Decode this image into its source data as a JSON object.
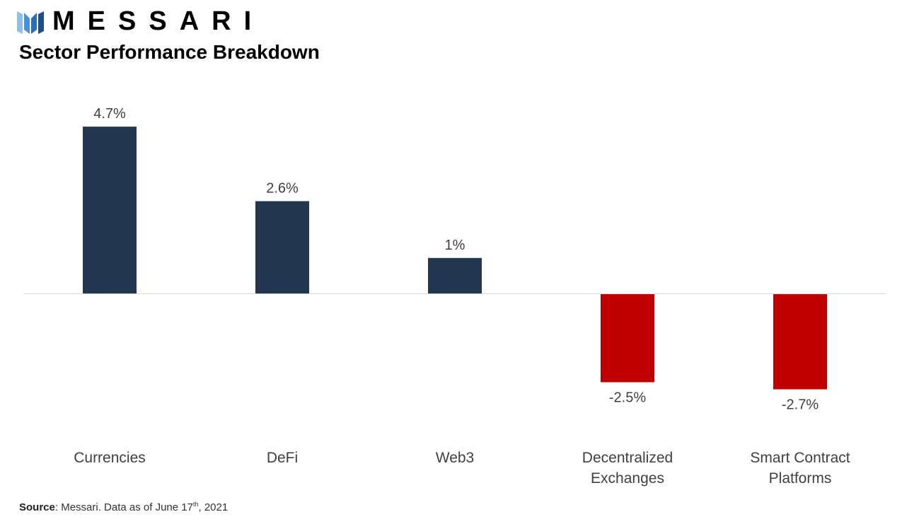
{
  "brand": {
    "name": "MESSARI",
    "icon": "messari-logo-icon"
  },
  "title": "Sector Performance Breakdown",
  "source": {
    "label": "Source",
    "text_before": ": Messari. Data as of June 17",
    "superscript": "th",
    "text_after": ", 2021"
  },
  "colors": {
    "positive": "#22374F",
    "negative": "#C00000",
    "axis": "#D9D9D9"
  },
  "chart_data": {
    "type": "bar",
    "title": "Sector Performance Breakdown",
    "categories": [
      [
        "Currencies"
      ],
      [
        "DeFi"
      ],
      [
        "Web3"
      ],
      [
        "Decentralized",
        "Exchanges"
      ],
      [
        "Smart Contract",
        "Platforms"
      ]
    ],
    "values": [
      4.7,
      2.6,
      1.0,
      -2.5,
      -2.7
    ],
    "value_labels": [
      "4.7%",
      "2.6%",
      "1%",
      "-2.5%",
      "-2.7%"
    ],
    "ylim": [
      -3.5,
      5.5
    ],
    "grid": false,
    "legend": "none",
    "xlabel": "",
    "ylabel": ""
  }
}
